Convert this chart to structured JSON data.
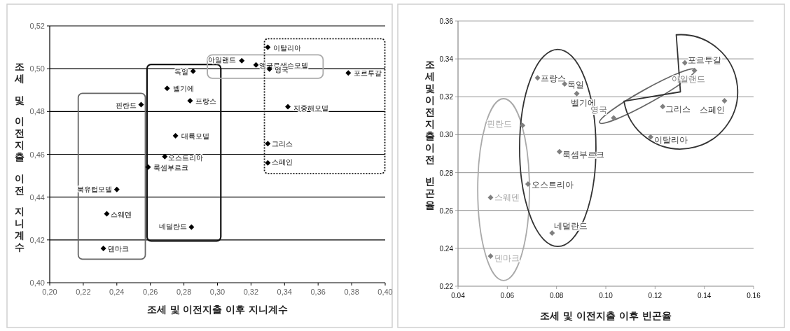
{
  "chart_data": [
    {
      "type": "scatter",
      "xlabel": "조세 및 이전지출 이후 지니계수",
      "ylabel": "조세 및 이전지출 이전 지니계수",
      "marker": "diamond",
      "grid": "y",
      "xlim": [
        0.2,
        0.4
      ],
      "ylim": [
        0.4,
        0.52
      ],
      "xticks": [
        {
          "value": 0.2,
          "label": "0,20"
        },
        {
          "value": 0.22,
          "label": "0,22"
        },
        {
          "value": 0.24,
          "label": "0,24"
        },
        {
          "value": 0.26,
          "label": "0,26"
        },
        {
          "value": 0.28,
          "label": "0,28"
        },
        {
          "value": 0.3,
          "label": "0,30"
        },
        {
          "value": 0.32,
          "label": "0,32"
        },
        {
          "value": 0.34,
          "label": "0,34"
        },
        {
          "value": 0.36,
          "label": "0,36"
        },
        {
          "value": 0.38,
          "label": "0,38"
        },
        {
          "value": 0.4,
          "label": "0,40"
        }
      ],
      "yticks": [
        {
          "value": 0.4,
          "label": "0,40"
        },
        {
          "value": 0.42,
          "label": "0,42"
        },
        {
          "value": 0.44,
          "label": "0,44"
        },
        {
          "value": 0.46,
          "label": "0,46"
        },
        {
          "value": 0.48,
          "label": "0,48"
        },
        {
          "value": 0.5,
          "label": "0,50"
        },
        {
          "value": 0.52,
          "label": "0,52"
        }
      ],
      "series": [
        {
          "name": "이탈리아",
          "color": "#000000",
          "x": [
            0.33
          ],
          "values": [
            0.51
          ]
        },
        {
          "name": "아일랜드",
          "color": "#000000",
          "x": [
            0.3145
          ],
          "values": [
            0.5037
          ]
        },
        {
          "name": "앵글로색슨모델",
          "color": "#000000",
          "x": [
            0.323
          ],
          "values": [
            0.5018
          ]
        },
        {
          "name": "영국",
          "color": "#000000",
          "x": [
            0.331
          ],
          "values": [
            0.4998
          ]
        },
        {
          "name": "포르투갈",
          "color": "#000000",
          "x": [
            0.378
          ],
          "values": [
            0.498
          ]
        },
        {
          "name": "독일",
          "color": "#000000",
          "x": [
            0.2855
          ],
          "values": [
            0.4988
          ]
        },
        {
          "name": "벨기에",
          "color": "#000000",
          "x": [
            0.27
          ],
          "values": [
            0.4908
          ]
        },
        {
          "name": "프랑스",
          "color": "#000000",
          "x": [
            0.2837
          ],
          "values": [
            0.485
          ]
        },
        {
          "name": "핀란드",
          "color": "#000000",
          "x": [
            0.2545
          ],
          "values": [
            0.4832
          ]
        },
        {
          "name": "지중해모델",
          "color": "#000000",
          "x": [
            0.342
          ],
          "values": [
            0.4822
          ]
        },
        {
          "name": "대륙모델",
          "color": "#000000",
          "x": [
            0.275
          ],
          "values": [
            0.4687
          ]
        },
        {
          "name": "그리스",
          "color": "#000000",
          "x": [
            0.33
          ],
          "values": [
            0.465
          ]
        },
        {
          "name": "오스트리아",
          "color": "#000000",
          "x": [
            0.2686
          ],
          "values": [
            0.4589
          ]
        },
        {
          "name": "스페인",
          "color": "#000000",
          "x": [
            0.33
          ],
          "values": [
            0.456
          ]
        },
        {
          "name": "룩셈부르크",
          "color": "#000000",
          "x": [
            0.2587
          ],
          "values": [
            0.454
          ]
        },
        {
          "name": "북유럽모델",
          "color": "#000000",
          "x": [
            0.24
          ],
          "values": [
            0.4436
          ]
        },
        {
          "name": "스웨덴",
          "color": "#000000",
          "x": [
            0.234
          ],
          "values": [
            0.4322
          ]
        },
        {
          "name": "네덜란드",
          "color": "#000000",
          "x": [
            0.2845
          ],
          "values": [
            0.426
          ]
        },
        {
          "name": "덴마크",
          "color": "#000000",
          "x": [
            0.232
          ],
          "values": [
            0.416
          ]
        }
      ]
    },
    {
      "type": "scatter",
      "xlabel": "조세 및 이전지출 이후 빈곤율",
      "ylabel": "조세및이전지출이전 빈곤율",
      "marker": "diamond",
      "grid": "y",
      "xlim": [
        0.04,
        0.16
      ],
      "ylim": [
        0.22,
        0.36
      ],
      "xticks": [
        {
          "value": 0.04,
          "label": "0.04"
        },
        {
          "value": 0.06,
          "label": "0.06"
        },
        {
          "value": 0.08,
          "label": "0.08"
        },
        {
          "value": 0.1,
          "label": "0.10"
        },
        {
          "value": 0.12,
          "label": "0.12"
        },
        {
          "value": 0.14,
          "label": "0.14"
        },
        {
          "value": 0.16,
          "label": "0.16"
        }
      ],
      "yticks": [
        {
          "value": 0.22,
          "label": "0.22"
        },
        {
          "value": 0.24,
          "label": "0.24"
        },
        {
          "value": 0.26,
          "label": "0.26"
        },
        {
          "value": 0.28,
          "label": "0.28"
        },
        {
          "value": 0.3,
          "label": "0.30"
        },
        {
          "value": 0.32,
          "label": "0.32"
        },
        {
          "value": 0.34,
          "label": "0.34"
        },
        {
          "value": 0.36,
          "label": "0.36"
        }
      ],
      "series": [
        {
          "name": "프랑스",
          "color": "#7f7f7f",
          "x": [
            0.0723
          ],
          "values": [
            0.33
          ]
        },
        {
          "name": "독일",
          "color": "#7f7f7f",
          "x": [
            0.0833
          ],
          "values": [
            0.3268
          ]
        },
        {
          "name": "벨기에",
          "color": "#7f7f7f",
          "x": [
            0.0882
          ],
          "values": [
            0.3217
          ]
        },
        {
          "name": "포르투갈",
          "color": "#7f7f7f",
          "x": [
            0.1321
          ],
          "values": [
            0.3379
          ]
        },
        {
          "name": "아일랜드",
          "color": "#7f7f7f",
          "x": [
            0.136
          ],
          "values": [
            0.3339
          ]
        },
        {
          "name": "스페인",
          "color": "#7f7f7f",
          "x": [
            0.1482
          ],
          "values": [
            0.3179
          ]
        },
        {
          "name": "그리스",
          "color": "#7f7f7f",
          "x": [
            0.1231
          ],
          "values": [
            0.3148
          ]
        },
        {
          "name": "영국",
          "color": "#7f7f7f",
          "x": [
            0.1032
          ],
          "values": [
            0.3088
          ]
        },
        {
          "name": "이탈리아",
          "color": "#7f7f7f",
          "x": [
            0.1182
          ],
          "values": [
            0.2988
          ]
        },
        {
          "name": "핀란드",
          "color": "#7f7f7f",
          "x": [
            0.0662
          ],
          "values": [
            0.3049
          ]
        },
        {
          "name": "룩셈부르크",
          "color": "#7f7f7f",
          "x": [
            0.0812
          ],
          "values": [
            0.291
          ]
        },
        {
          "name": "오스트리아",
          "color": "#7f7f7f",
          "x": [
            0.0684
          ],
          "values": [
            0.2739
          ]
        },
        {
          "name": "스웨덴",
          "color": "#7f7f7f",
          "x": [
            0.0532
          ],
          "values": [
            0.2668
          ]
        },
        {
          "name": "네덜란드",
          "color": "#7f7f7f",
          "x": [
            0.0782
          ],
          "values": [
            0.2481
          ]
        },
        {
          "name": "덴마크",
          "color": "#7f7f7f",
          "x": [
            0.0532
          ],
          "values": [
            0.2359
          ]
        }
      ]
    }
  ]
}
